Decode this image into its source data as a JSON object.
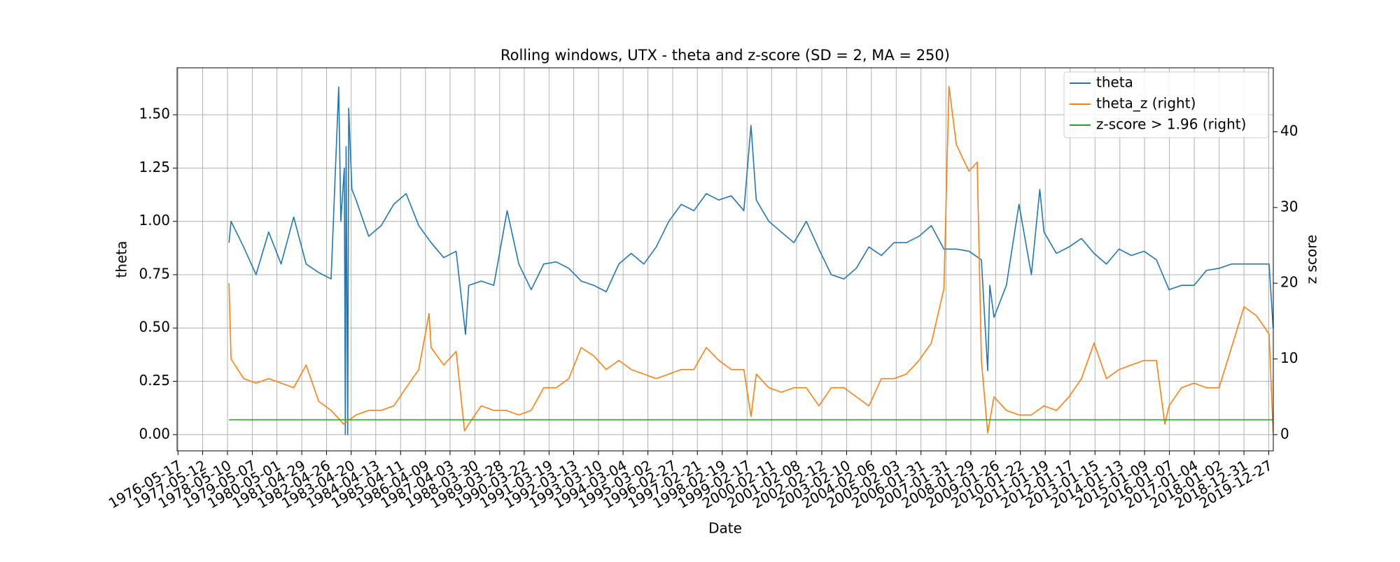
{
  "chart_data": {
    "type": "line",
    "title": "Rolling windows, UTX - theta and z-score (SD = 2, MA = 250)",
    "x_label": "Date",
    "y_label": "theta",
    "y2_label": "z score",
    "xlim": [
      "1976-05-04",
      "2020-03-03"
    ],
    "xticks": [
      "1976-05-17",
      "1977-05-12",
      "1978-05-10",
      "1979-05-07",
      "1980-05-01",
      "1981-04-29",
      "1982-04-26",
      "1983-04-20",
      "1984-04-13",
      "1985-04-11",
      "1986-04-09",
      "1987-04-03",
      "1988-03-30",
      "1989-03-28",
      "1990-03-22",
      "1991-03-19",
      "1992-03-13",
      "1993-03-10",
      "1994-03-04",
      "1995-03-02",
      "1996-02-27",
      "1997-02-21",
      "1998-02-19",
      "1999-02-17",
      "2000-02-11",
      "2001-02-08",
      "2002-02-12",
      "2003-02-10",
      "2004-02-06",
      "2005-02-03",
      "2006-01-31",
      "2007-01-31",
      "2008-01-29",
      "2009-01-26",
      "2010-01-22",
      "2011-01-19",
      "2012-01-17",
      "2013-01-15",
      "2014-01-13",
      "2015-01-09",
      "2016-01-07",
      "2017-01-04",
      "2018-01-02",
      "2018-12-31",
      "2019-12-27"
    ],
    "ylim": [
      -0.076,
      1.72
    ],
    "yticks": [
      {
        "value": 0,
        "label": "0.00"
      },
      {
        "value": 0.25,
        "label": "0.25"
      },
      {
        "value": 0.5,
        "label": "0.50"
      },
      {
        "value": 0.75,
        "label": "0.75"
      },
      {
        "value": 1,
        "label": "1.00"
      },
      {
        "value": 1.25,
        "label": "1.25"
      },
      {
        "value": 1.5,
        "label": "1.50"
      }
    ],
    "y2lim": [
      -2.14,
      48.45
    ],
    "y2ticks": [
      0,
      10,
      20,
      30,
      40
    ],
    "grid": true,
    "legend": "upper right",
    "series": [
      {
        "name": "theta",
        "color": "#1f77b4",
        "x": [
          "1978-06-01",
          "1978-07-01",
          "1979-01-01",
          "1979-07-01",
          "1980-01-01",
          "1980-07-01",
          "1981-01-01",
          "1981-07-01",
          "1982-01-01",
          "1982-07-01",
          "1982-10-20",
          "1982-11-20",
          "1983-01-10",
          "1983-01-25",
          "1983-02-05",
          "1983-03-01",
          "1983-03-15",
          "1983-05-01",
          "1983-07-01",
          "1984-01-01",
          "1984-07-01",
          "1985-01-01",
          "1985-07-01",
          "1986-01-01",
          "1986-07-01",
          "1987-01-01",
          "1987-07-01",
          "1987-11-15",
          "1988-01-01",
          "1988-07-01",
          "1989-01-01",
          "1989-07-15",
          "1990-01-01",
          "1990-07-01",
          "1991-01-01",
          "1991-07-01",
          "1992-01-01",
          "1992-07-01",
          "1993-01-01",
          "1993-07-01",
          "1994-01-01",
          "1994-07-01",
          "1995-01-01",
          "1995-07-01",
          "1996-01-01",
          "1996-07-01",
          "1997-01-01",
          "1997-07-01",
          "1998-01-01",
          "1998-07-01",
          "1999-01-01",
          "1999-04-15",
          "1999-07-01",
          "2000-01-01",
          "2000-07-01",
          "2001-01-01",
          "2001-07-01",
          "2002-01-01",
          "2002-07-01",
          "2003-01-01",
          "2003-07-01",
          "2004-01-01",
          "2004-07-01",
          "2005-01-01",
          "2005-07-01",
          "2006-01-01",
          "2006-07-01",
          "2007-01-01",
          "2007-07-01",
          "2008-01-01",
          "2008-07-01",
          "2008-10-01",
          "2008-11-01",
          "2009-01-01",
          "2009-07-01",
          "2010-01-01",
          "2010-07-01",
          "2010-11-01",
          "2011-01-01",
          "2011-07-01",
          "2012-01-01",
          "2012-07-01",
          "2013-01-01",
          "2013-07-01",
          "2014-01-01",
          "2014-07-01",
          "2015-01-01",
          "2015-07-01",
          "2016-01-01",
          "2016-07-01",
          "2017-01-01",
          "2017-07-01",
          "2018-01-01",
          "2018-07-01",
          "2019-01-01",
          "2019-07-01",
          "2020-01-01",
          "2020-03-01"
        ],
        "values": [
          0.9,
          1.0,
          0.88,
          0.75,
          0.95,
          0.8,
          1.02,
          0.8,
          0.76,
          0.73,
          1.63,
          1.0,
          1.25,
          0.0,
          1.35,
          0.0,
          1.53,
          1.15,
          1.1,
          0.93,
          0.98,
          1.08,
          1.13,
          0.98,
          0.9,
          0.83,
          0.86,
          0.47,
          0.7,
          0.72,
          0.7,
          1.05,
          0.8,
          0.68,
          0.8,
          0.81,
          0.78,
          0.72,
          0.7,
          0.67,
          0.8,
          0.85,
          0.8,
          0.88,
          1.0,
          1.08,
          1.05,
          1.13,
          1.1,
          1.12,
          1.05,
          1.45,
          1.1,
          1.0,
          0.95,
          0.9,
          1.0,
          0.87,
          0.75,
          0.73,
          0.78,
          0.88,
          0.84,
          0.9,
          0.9,
          0.93,
          0.98,
          0.87,
          0.87,
          0.86,
          0.82,
          0.3,
          0.7,
          0.55,
          0.7,
          1.08,
          0.75,
          1.15,
          0.95,
          0.85,
          0.88,
          0.92,
          0.85,
          0.8,
          0.87,
          0.84,
          0.86,
          0.82,
          0.68,
          0.7,
          0.7,
          0.77,
          0.78,
          0.8,
          0.8,
          0.8,
          0.8,
          0.5
        ]
      },
      {
        "name": "theta_z (right)",
        "color": "#ff7f0e",
        "axis": "y2",
        "x": [
          "1978-06-01",
          "1978-07-01",
          "1979-01-01",
          "1979-07-01",
          "1980-01-01",
          "1980-07-01",
          "1981-01-01",
          "1981-07-01",
          "1982-01-01",
          "1982-07-01",
          "1983-01-01",
          "1983-07-01",
          "1984-01-01",
          "1984-07-01",
          "1985-01-01",
          "1985-07-01",
          "1986-01-01",
          "1986-06-01",
          "1986-07-01",
          "1987-01-01",
          "1987-07-01",
          "1987-11-01",
          "1988-01-01",
          "1988-07-01",
          "1989-01-01",
          "1989-07-01",
          "1990-01-01",
          "1990-07-01",
          "1991-01-01",
          "1991-07-01",
          "1992-01-01",
          "1992-07-01",
          "1993-01-01",
          "1993-07-01",
          "1994-01-01",
          "1994-07-01",
          "1995-01-01",
          "1995-07-01",
          "1996-01-01",
          "1996-07-01",
          "1997-01-01",
          "1997-07-01",
          "1998-01-01",
          "1998-07-01",
          "1999-01-01",
          "1999-04-15",
          "1999-07-01",
          "2000-01-01",
          "2000-07-01",
          "2001-01-01",
          "2001-07-01",
          "2002-01-01",
          "2002-07-01",
          "2003-01-01",
          "2003-07-01",
          "2004-01-01",
          "2004-07-01",
          "2005-01-01",
          "2005-07-01",
          "2006-01-01",
          "2006-07-01",
          "2007-01-01",
          "2007-03-15",
          "2007-07-01",
          "2008-01-01",
          "2008-05-01",
          "2008-07-01",
          "2008-10-01",
          "2009-01-01",
          "2009-07-01",
          "2010-01-01",
          "2010-07-01",
          "2011-01-01",
          "2011-07-01",
          "2012-01-01",
          "2012-07-01",
          "2013-01-01",
          "2013-07-01",
          "2014-01-01",
          "2014-07-01",
          "2015-01-01",
          "2015-07-01",
          "2015-11-01",
          "2016-01-01",
          "2016-07-01",
          "2017-01-01",
          "2017-07-01",
          "2018-01-01",
          "2018-07-01",
          "2019-01-01",
          "2019-07-01",
          "2020-01-01",
          "2020-03-01"
        ],
        "values": [
          20,
          10,
          7.4,
          6.8,
          7.4,
          6.8,
          6.2,
          9.2,
          4.4,
          3.2,
          1.4,
          2.6,
          3.2,
          3.2,
          3.8,
          6.2,
          8.6,
          16,
          11.5,
          9.2,
          11,
          0.5,
          1.4,
          3.8,
          3.2,
          3.2,
          2.6,
          3.2,
          6.2,
          6.2,
          7.4,
          11.5,
          10.4,
          8.6,
          9.8,
          8.6,
          8,
          7.4,
          8,
          8.6,
          8.6,
          11.5,
          9.8,
          8.6,
          8.6,
          2.4,
          8,
          6.2,
          5.6,
          6.2,
          6.2,
          3.8,
          6.2,
          6.2,
          5,
          3.8,
          7.4,
          7.4,
          8,
          9.8,
          12.1,
          19.3,
          46,
          38.3,
          34.8,
          36,
          9.8,
          0.2,
          5,
          3.2,
          2.6,
          2.6,
          3.8,
          3.2,
          5,
          7.4,
          12.1,
          7.4,
          8.6,
          9.2,
          9.8,
          9.8,
          1.4,
          3.8,
          6.2,
          6.8,
          6.2,
          6.2,
          11.5,
          16.9,
          15.7,
          13.3,
          0.2
        ]
      },
      {
        "name": "z-score > 1.96 (right)",
        "color": "#2ca02c",
        "axis": "y2",
        "x": [
          "1978-06-01",
          "2020-03-01"
        ],
        "values": [
          1.96,
          1.96
        ]
      }
    ]
  }
}
